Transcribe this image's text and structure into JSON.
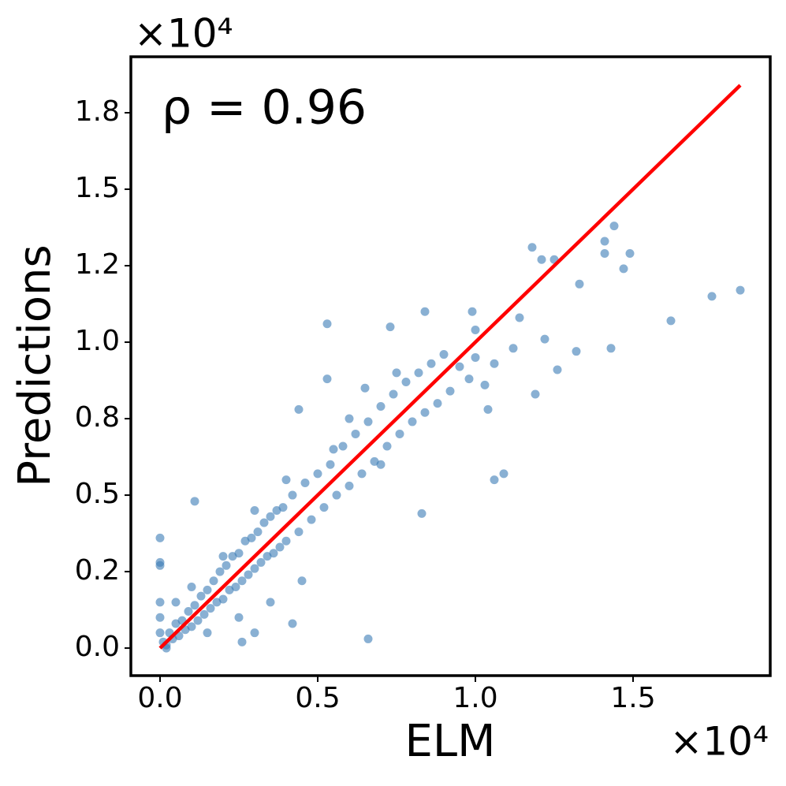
{
  "chart_data": {
    "type": "scatter",
    "x_label": "ELM",
    "y_label": "Predictions",
    "x_offset_label": "×10⁴",
    "y_offset_label": "×10⁴",
    "annotation": "ρ = 0.96",
    "xlim": [
      -0.0925,
      1.935
    ],
    "ylim": [
      -0.09,
      1.933
    ],
    "xticks": [
      {
        "value": 0,
        "label": "0.0"
      },
      0.5,
      {
        "value": 1.0,
        "label": "1.0"
      },
      1.5
    ],
    "yticks": [
      {
        "value": 0,
        "label": "0.0"
      },
      {
        "value": 0.25,
        "label": "0.2"
      },
      0.5,
      {
        "value": 0.75,
        "label": "0.8"
      },
      {
        "value": 1.0,
        "label": "1.0"
      },
      {
        "value": 1.25,
        "label": "1.2"
      },
      1.5,
      {
        "value": 1.75,
        "label": "1.8"
      }
    ],
    "series": [
      {
        "type": "scatter",
        "color": "#3b7bb6",
        "x": [
          1.84,
          1.75,
          1.62,
          1.43,
          1.44,
          1.41,
          1.41,
          1.49,
          1.47,
          1.33,
          1.32,
          1.18,
          1.21,
          1.25,
          1.26,
          1.09,
          1.06,
          0.66,
          0.53,
          0.73,
          0.84,
          0.99,
          1.0,
          1.14,
          0.11,
          0,
          0,
          0,
          0.3,
          0.42,
          0.26,
          0.83,
          1.22,
          1.12,
          1.19,
          1.04,
          0.44,
          0.53,
          0.01,
          0.02,
          0.03,
          0.04,
          0.05,
          0.06,
          0.07,
          0.08,
          0.09,
          0.1,
          0.11,
          0.12,
          0.13,
          0.14,
          0.15,
          0.16,
          0.17,
          0.18,
          0.19,
          0.2,
          0.21,
          0.22,
          0.23,
          0.24,
          0.25,
          0.26,
          0.27,
          0.28,
          0.29,
          0.3,
          0.31,
          0.32,
          0.33,
          0.34,
          0.35,
          0.36,
          0.37,
          0.38,
          0.39,
          0.4,
          0.42,
          0.44,
          0.46,
          0.48,
          0.5,
          0.52,
          0.54,
          0.56,
          0.58,
          0.6,
          0.62,
          0.64,
          0.66,
          0.68,
          0.7,
          0.72,
          0.74,
          0.76,
          0.78,
          0.8,
          0.82,
          0.84,
          0.86,
          0.88,
          0.9,
          0.92,
          0.95,
          0.98,
          1.0,
          1.03,
          1.06,
          0.15,
          0.25,
          0.35,
          0.45,
          0.2,
          0.3,
          0.4,
          0.1,
          0.05,
          0,
          0,
          0,
          0.02,
          0.6,
          0.7,
          0.55,
          0.65,
          0.75
        ],
        "values": [
          1.17,
          1.15,
          1.07,
          0.98,
          1.38,
          1.33,
          1.29,
          1.29,
          1.24,
          1.19,
          0.97,
          1.31,
          1.27,
          1.27,
          0.91,
          0.57,
          0.55,
          0.03,
          1.06,
          1.05,
          1.1,
          1.1,
          1.04,
          1.08,
          0.48,
          0.36,
          0.28,
          0.27,
          0.05,
          0.08,
          0.02,
          0.44,
          1.01,
          0.98,
          0.83,
          0.78,
          0.78,
          0.88,
          0.02,
          0.01,
          0.05,
          0.03,
          0.08,
          0.04,
          0.09,
          0.06,
          0.12,
          0.07,
          0.14,
          0.09,
          0.17,
          0.11,
          0.19,
          0.13,
          0.22,
          0.15,
          0.25,
          0.16,
          0.27,
          0.19,
          0.3,
          0.2,
          0.31,
          0.22,
          0.35,
          0.24,
          0.36,
          0.26,
          0.38,
          0.28,
          0.41,
          0.3,
          0.43,
          0.31,
          0.45,
          0.33,
          0.46,
          0.35,
          0.5,
          0.38,
          0.54,
          0.42,
          0.57,
          0.46,
          0.6,
          0.5,
          0.66,
          0.53,
          0.7,
          0.57,
          0.74,
          0.61,
          0.79,
          0.66,
          0.83,
          0.7,
          0.87,
          0.74,
          0.9,
          0.77,
          0.93,
          0.8,
          0.96,
          0.84,
          0.92,
          0.88,
          0.95,
          0.86,
          0.93,
          0.05,
          0.1,
          0.15,
          0.22,
          0.3,
          0.45,
          0.55,
          0.2,
          0.15,
          0.05,
          0.1,
          0.15,
          0,
          0.75,
          0.6,
          0.65,
          0.85,
          0.9
        ]
      },
      {
        "type": "line",
        "color": "#ff0000",
        "x": [
          0,
          1.84
        ],
        "values": [
          0,
          1.84
        ]
      }
    ]
  }
}
